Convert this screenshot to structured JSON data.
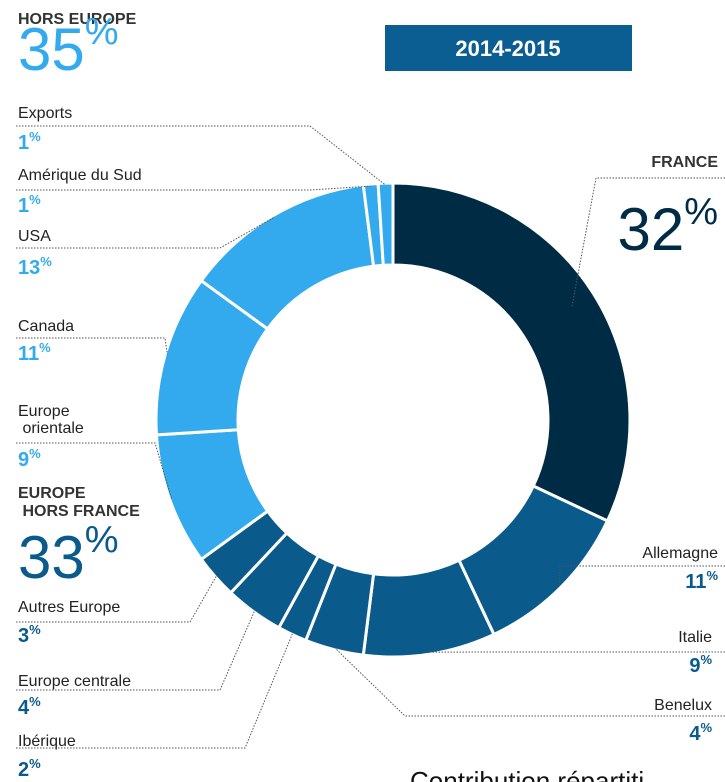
{
  "chart_data": {
    "type": "donut",
    "title": "2014-2015",
    "categories": [
      "FRANCE",
      "Allemagne",
      "Italie",
      "Benelux",
      "Ibérique",
      "Europe centrale",
      "Autres Europe",
      "Europe orientale",
      "Canada",
      "USA",
      "Amérique du Sud",
      "Exports"
    ],
    "values": [
      32,
      11,
      9,
      4,
      2,
      4,
      3,
      9,
      11,
      13,
      1,
      1
    ],
    "value_labels": [
      "32%",
      "11%",
      "9%",
      "4%",
      "2%",
      "4%",
      "3%",
      "9%",
      "11%",
      "13%",
      "1%",
      "1%"
    ],
    "colors": [
      "#002b45",
      "#0a5a8c",
      "#0a5a8c",
      "#0a5a8c",
      "#0a5a8c",
      "#0a5a8c",
      "#0a5a8c",
      "#33aaee",
      "#33aaee",
      "#33aaee",
      "#33aaee",
      "#33aaee"
    ],
    "groups": [
      {
        "name": "HORS EUROPE",
        "value": 35,
        "value_label": "35%",
        "color": "#33aaee"
      },
      {
        "name": "EUROPE HORS FRANCE",
        "value": 33,
        "value_label": "33%",
        "color": "#0a5a8c"
      }
    ],
    "footnote": "Contribution répartiti"
  }
}
